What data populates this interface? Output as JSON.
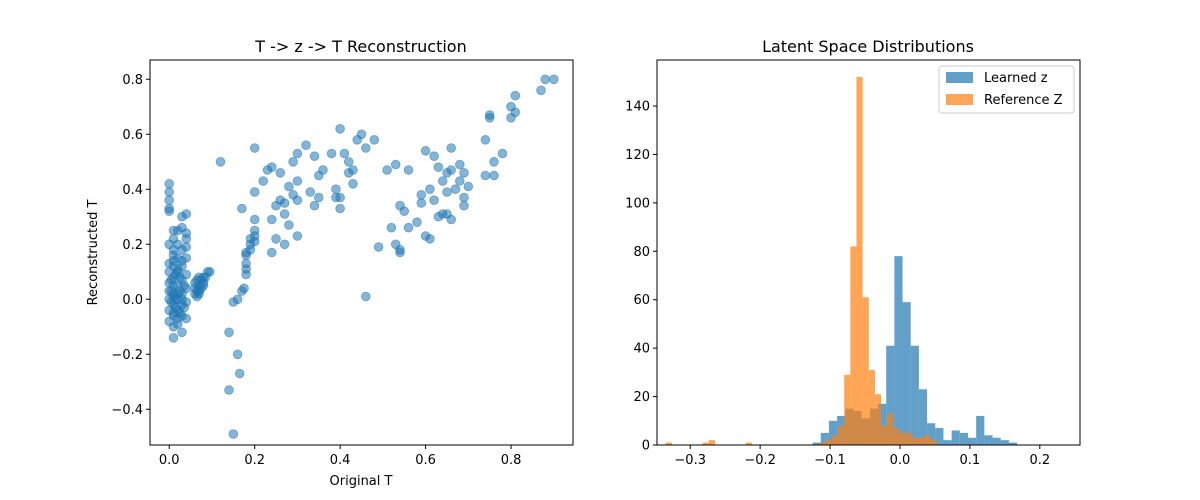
{
  "chart_data": [
    {
      "type": "scatter",
      "title": "T -> z -> T Reconstruction",
      "xlabel": "Original T",
      "ylabel": "Reconstructed T",
      "xlim": [
        -0.045,
        0.945
      ],
      "ylim": [
        -0.53,
        0.87
      ],
      "xticks": [
        0.0,
        0.2,
        0.4,
        0.6,
        0.8
      ],
      "xtick_labels": [
        "0.0",
        "0.2",
        "0.4",
        "0.6",
        "0.8"
      ],
      "yticks": [
        -0.4,
        -0.2,
        0.0,
        0.2,
        0.4,
        0.6,
        0.8
      ],
      "ytick_labels": [
        "−0.4",
        "−0.2",
        "0.0",
        "0.2",
        "0.4",
        "0.6",
        "0.8"
      ],
      "grid": false,
      "color": "#1f77b4",
      "alpha": 0.55,
      "points": [
        [
          0.0,
          0.42
        ],
        [
          0.0,
          0.39
        ],
        [
          0.0,
          0.36
        ],
        [
          0.0,
          0.33
        ],
        [
          0.0,
          0.32
        ],
        [
          0.01,
          0.25
        ],
        [
          0.0,
          0.2
        ],
        [
          0.01,
          0.18
        ],
        [
          0.01,
          0.16
        ],
        [
          0.0,
          0.13
        ],
        [
          0.01,
          0.12
        ],
        [
          0.0,
          0.1
        ],
        [
          0.01,
          0.08
        ],
        [
          0.0,
          0.06
        ],
        [
          0.01,
          0.05
        ],
        [
          0.0,
          0.03
        ],
        [
          0.01,
          0.02
        ],
        [
          0.0,
          0.0
        ],
        [
          0.01,
          -0.02
        ],
        [
          0.0,
          -0.04
        ],
        [
          0.01,
          -0.06
        ],
        [
          0.0,
          -0.08
        ],
        [
          0.01,
          -0.1
        ],
        [
          0.01,
          -0.14
        ],
        [
          0.02,
          0.2
        ],
        [
          0.02,
          0.15
        ],
        [
          0.02,
          0.1
        ],
        [
          0.02,
          0.05
        ],
        [
          0.02,
          0.0
        ],
        [
          0.02,
          -0.04
        ],
        [
          0.02,
          -0.07
        ],
        [
          0.03,
          0.18
        ],
        [
          0.03,
          0.12
        ],
        [
          0.03,
          0.07
        ],
        [
          0.03,
          0.02
        ],
        [
          0.03,
          -0.02
        ],
        [
          0.03,
          -0.06
        ],
        [
          0.03,
          -0.12
        ],
        [
          0.03,
          0.3
        ],
        [
          0.04,
          0.31
        ],
        [
          0.03,
          0.26
        ],
        [
          0.04,
          0.24
        ],
        [
          0.04,
          0.22
        ],
        [
          0.04,
          0.19
        ],
        [
          0.04,
          0.15
        ],
        [
          0.04,
          0.09
        ],
        [
          0.04,
          0.04
        ],
        [
          0.04,
          -0.01
        ],
        [
          0.04,
          -0.07
        ],
        [
          0.02,
          0.11
        ],
        [
          0.015,
          0.0
        ],
        [
          0.025,
          0.03
        ],
        [
          0.005,
          0.07
        ],
        [
          0.015,
          -0.03
        ],
        [
          0.025,
          -0.05
        ],
        [
          0.01,
          0.01
        ],
        [
          0.02,
          0.02
        ],
        [
          0.03,
          0.0
        ],
        [
          0.015,
          0.09
        ],
        [
          0.005,
          -0.01
        ],
        [
          0.01,
          0.22
        ],
        [
          0.02,
          0.25
        ],
        [
          0.01,
          0.14
        ],
        [
          0.03,
          0.14
        ],
        [
          0.02,
          -0.09
        ],
        [
          0.01,
          -0.05
        ],
        [
          0.035,
          0.05
        ],
        [
          0.005,
          0.03
        ],
        [
          0.025,
          0.08
        ],
        [
          0.035,
          -0.03
        ],
        [
          0.06,
          0.04
        ],
        [
          0.06,
          0.02
        ],
        [
          0.065,
          0.07
        ],
        [
          0.07,
          0.08
        ],
        [
          0.07,
          0.05
        ],
        [
          0.07,
          0.03
        ],
        [
          0.075,
          0.04
        ],
        [
          0.08,
          0.06
        ],
        [
          0.08,
          0.08
        ],
        [
          0.09,
          0.1
        ],
        [
          0.095,
          0.1
        ],
        [
          0.065,
          0.01
        ],
        [
          0.07,
          0.02
        ],
        [
          0.075,
          0.07
        ],
        [
          0.085,
          0.08
        ],
        [
          0.06,
          0.06
        ],
        [
          0.065,
          0.03
        ],
        [
          0.08,
          0.05
        ],
        [
          0.12,
          0.5
        ],
        [
          0.14,
          -0.12
        ],
        [
          0.14,
          -0.33
        ],
        [
          0.15,
          -0.49
        ],
        [
          0.16,
          -0.2
        ],
        [
          0.165,
          -0.27
        ],
        [
          0.15,
          -0.01
        ],
        [
          0.16,
          0.0
        ],
        [
          0.17,
          0.03
        ],
        [
          0.175,
          0.04
        ],
        [
          0.18,
          0.09
        ],
        [
          0.18,
          0.11
        ],
        [
          0.18,
          0.13
        ],
        [
          0.18,
          0.16
        ],
        [
          0.19,
          0.18
        ],
        [
          0.19,
          0.2
        ],
        [
          0.2,
          0.21
        ],
        [
          0.2,
          0.23
        ],
        [
          0.2,
          0.25
        ],
        [
          0.18,
          0.17
        ],
        [
          0.19,
          0.22
        ],
        [
          0.17,
          0.33
        ],
        [
          0.2,
          0.29
        ],
        [
          0.2,
          0.39
        ],
        [
          0.2,
          0.55
        ],
        [
          0.22,
          0.43
        ],
        [
          0.23,
          0.47
        ],
        [
          0.24,
          0.48
        ],
        [
          0.24,
          0.29
        ],
        [
          0.25,
          0.34
        ],
        [
          0.25,
          0.22
        ],
        [
          0.24,
          0.17
        ],
        [
          0.26,
          0.36
        ],
        [
          0.26,
          0.46
        ],
        [
          0.27,
          0.35
        ],
        [
          0.27,
          0.31
        ],
        [
          0.28,
          0.41
        ],
        [
          0.28,
          0.27
        ],
        [
          0.27,
          0.2
        ],
        [
          0.29,
          0.5
        ],
        [
          0.29,
          0.38
        ],
        [
          0.3,
          0.53
        ],
        [
          0.3,
          0.43
        ],
        [
          0.3,
          0.36
        ],
        [
          0.3,
          0.23
        ],
        [
          0.32,
          0.56
        ],
        [
          0.33,
          0.39
        ],
        [
          0.34,
          0.52
        ],
        [
          0.34,
          0.34
        ],
        [
          0.35,
          0.45
        ],
        [
          0.35,
          0.37
        ],
        [
          0.36,
          0.47
        ],
        [
          0.38,
          0.53
        ],
        [
          0.39,
          0.4
        ],
        [
          0.4,
          0.62
        ],
        [
          0.39,
          0.37
        ],
        [
          0.4,
          0.33
        ],
        [
          0.4,
          0.37
        ],
        [
          0.41,
          0.53
        ],
        [
          0.42,
          0.5
        ],
        [
          0.42,
          0.46
        ],
        [
          0.43,
          0.47
        ],
        [
          0.43,
          0.42
        ],
        [
          0.44,
          0.58
        ],
        [
          0.45,
          0.6
        ],
        [
          0.46,
          0.55
        ],
        [
          0.46,
          0.01
        ],
        [
          0.48,
          0.58
        ],
        [
          0.49,
          0.19
        ],
        [
          0.51,
          0.47
        ],
        [
          0.53,
          0.49
        ],
        [
          0.52,
          0.26
        ],
        [
          0.53,
          0.2
        ],
        [
          0.54,
          0.34
        ],
        [
          0.54,
          0.17
        ],
        [
          0.54,
          0.18
        ],
        [
          0.55,
          0.32
        ],
        [
          0.56,
          0.26
        ],
        [
          0.56,
          0.47
        ],
        [
          0.58,
          0.28
        ],
        [
          0.59,
          0.38
        ],
        [
          0.59,
          0.35
        ],
        [
          0.6,
          0.54
        ],
        [
          0.6,
          0.23
        ],
        [
          0.61,
          0.22
        ],
        [
          0.61,
          0.4
        ],
        [
          0.62,
          0.36
        ],
        [
          0.62,
          0.52
        ],
        [
          0.63,
          0.3
        ],
        [
          0.63,
          0.48
        ],
        [
          0.64,
          0.43
        ],
        [
          0.64,
          0.31
        ],
        [
          0.65,
          0.31
        ],
        [
          0.65,
          0.46
        ],
        [
          0.65,
          0.39
        ],
        [
          0.66,
          0.47
        ],
        [
          0.66,
          0.55
        ],
        [
          0.66,
          0.29
        ],
        [
          0.67,
          0.4
        ],
        [
          0.68,
          0.43
        ],
        [
          0.68,
          0.49
        ],
        [
          0.69,
          0.46
        ],
        [
          0.69,
          0.37
        ],
        [
          0.69,
          0.34
        ],
        [
          0.7,
          0.41
        ],
        [
          0.74,
          0.58
        ],
        [
          0.74,
          0.45
        ],
        [
          0.75,
          0.67
        ],
        [
          0.75,
          0.66
        ],
        [
          0.76,
          0.45
        ],
        [
          0.76,
          0.5
        ],
        [
          0.78,
          0.53
        ],
        [
          0.8,
          0.7
        ],
        [
          0.8,
          0.66
        ],
        [
          0.81,
          0.68
        ],
        [
          0.81,
          0.74
        ],
        [
          0.87,
          0.76
        ],
        [
          0.88,
          0.8
        ],
        [
          0.9,
          0.8
        ]
      ]
    },
    {
      "type": "histogram",
      "title": "Latent Space Distributions",
      "xlim": [
        -0.3475,
        0.2575
      ],
      "ylim": [
        0,
        159
      ],
      "xticks": [
        -0.3,
        -0.2,
        -0.1,
        0.0,
        0.1,
        0.2
      ],
      "xtick_labels": [
        "−0.3",
        "−0.2",
        "−0.1",
        "0.0",
        "0.1",
        "0.2"
      ],
      "yticks": [
        0,
        20,
        40,
        60,
        80,
        100,
        120,
        140
      ],
      "ytick_labels": [
        "0",
        "20",
        "40",
        "60",
        "80",
        "100",
        "120",
        "140"
      ],
      "grid": false,
      "legend_position": "top-right",
      "series": [
        {
          "name": "Learned z",
          "color": "#1f77b4",
          "alpha": 0.7,
          "bin_start": -0.125,
          "bin_width": 0.0117,
          "counts": [
            1,
            5,
            10,
            12,
            15,
            14,
            11,
            15,
            17,
            41,
            78,
            59,
            41,
            23,
            9,
            7,
            2,
            6,
            5,
            3,
            12,
            4,
            3,
            2,
            1
          ]
        },
        {
          "name": "Reference Z",
          "color": "#ff7f0e",
          "alpha": 0.7,
          "bin_start": -0.335,
          "bin_width": 0.0088,
          "counts": [
            1,
            0,
            0,
            0,
            0,
            0,
            1,
            2,
            0,
            0,
            0,
            0,
            0,
            1,
            0,
            0,
            0,
            0,
            0,
            0,
            0,
            0,
            0,
            0,
            0,
            1,
            2,
            4,
            8,
            29,
            82,
            152,
            61,
            31,
            21,
            8,
            13,
            7,
            5,
            5,
            3,
            3,
            4,
            2
          ]
        }
      ]
    }
  ]
}
